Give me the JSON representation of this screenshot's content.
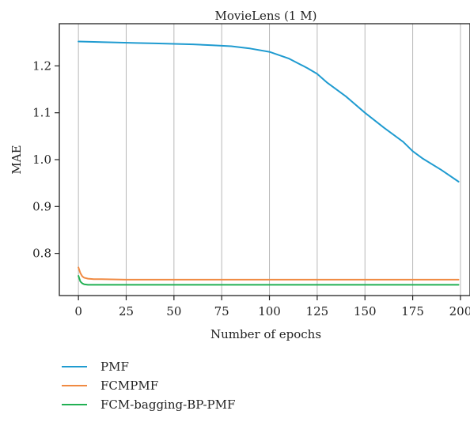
{
  "chart_data": {
    "type": "line",
    "title": "MovieLens (1 M)",
    "xlabel": "Number of epochs",
    "ylabel": "MAE",
    "xlim": [
      -10,
      205
    ],
    "ylim": [
      0.71,
      1.29
    ],
    "xticks": [
      0,
      25,
      50,
      75,
      100,
      125,
      150,
      175,
      200
    ],
    "yticks": [
      0.8,
      0.9,
      1.0,
      1.1,
      1.2
    ],
    "ytick_labels": [
      "0.8",
      "0.9",
      "1.0",
      "1.1",
      "1.2"
    ],
    "grid": "vertical",
    "legend_position": "below",
    "series": [
      {
        "name": "PMF",
        "color": "#1f9bd0",
        "x": [
          0,
          10,
          20,
          30,
          40,
          50,
          60,
          70,
          80,
          90,
          100,
          110,
          120,
          125,
          130,
          140,
          150,
          160,
          170,
          175,
          180,
          190,
          199
        ],
        "y": [
          1.252,
          1.251,
          1.25,
          1.249,
          1.248,
          1.247,
          1.246,
          1.244,
          1.242,
          1.237,
          1.23,
          1.216,
          1.195,
          1.183,
          1.165,
          1.135,
          1.1,
          1.068,
          1.038,
          1.018,
          1.003,
          0.978,
          0.953
        ]
      },
      {
        "name": "FCMPMF",
        "color": "#f08a42",
        "x": [
          0,
          1,
          2,
          3,
          5,
          8,
          12,
          25,
          50,
          75,
          100,
          125,
          150,
          175,
          199
        ],
        "y": [
          0.77,
          0.758,
          0.751,
          0.748,
          0.746,
          0.745,
          0.745,
          0.744,
          0.744,
          0.744,
          0.744,
          0.744,
          0.744,
          0.744,
          0.744
        ]
      },
      {
        "name": "FCM-bagging-BP-PMF",
        "color": "#22b053",
        "x": [
          0,
          1,
          2,
          3,
          5,
          8,
          12,
          25,
          50,
          75,
          100,
          125,
          150,
          175,
          199
        ],
        "y": [
          0.752,
          0.74,
          0.736,
          0.734,
          0.733,
          0.733,
          0.733,
          0.733,
          0.733,
          0.733,
          0.733,
          0.733,
          0.733,
          0.733,
          0.733
        ]
      }
    ]
  }
}
